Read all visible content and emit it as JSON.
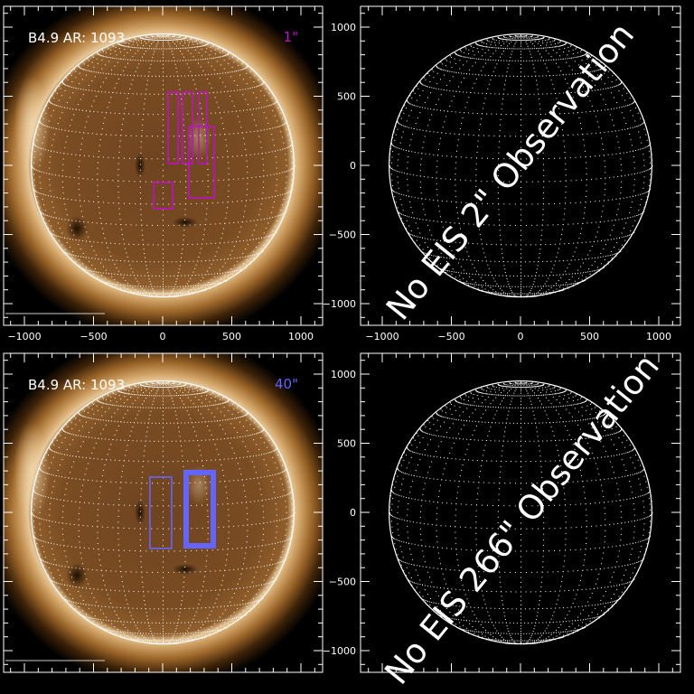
{
  "chart_data": [
    {
      "type": "image-with-overlay",
      "panel": "top-left",
      "label": "B4.9 AR: 1093",
      "raster_label": "1\"",
      "raster_color": "#c010c8",
      "xlim": [
        -1150,
        1150
      ],
      "ylim": [
        -1150,
        1150
      ],
      "xticks": [
        -1000,
        -500,
        0,
        500,
        1000
      ],
      "yticks": [],
      "show_xtick_labels": true,
      "image": "solar-disk",
      "rasters": [
        {
          "x": [
            39,
            111
          ],
          "y": [
            13,
            529
          ],
          "thick": false
        },
        {
          "x": [
            144,
            216
          ],
          "y": [
            13,
            529
          ],
          "thick": false
        },
        {
          "x": [
            261,
            320
          ],
          "y": [
            13,
            529
          ],
          "thick": false
        },
        {
          "x": [
            190,
            373
          ],
          "y": [
            -235,
            281
          ],
          "thick": false
        },
        {
          "x": [
            -65,
            72
          ],
          "y": [
            -314,
            -124
          ],
          "thick": false
        }
      ]
    },
    {
      "type": "grid-only",
      "panel": "top-right",
      "message": "No EIS 2\" Observation",
      "xlim": [
        -1150,
        1150
      ],
      "ylim": [
        -1150,
        1150
      ],
      "xticks": [
        -1000,
        -500,
        0,
        500,
        1000
      ],
      "yticks": [
        1000,
        500,
        0,
        -500,
        -1000
      ],
      "show_xtick_labels": true
    },
    {
      "type": "image-with-overlay",
      "panel": "bottom-left",
      "label": "B4.9 AR: 1093",
      "raster_label": "40\"",
      "raster_color": "#6464ff",
      "xlim": [
        -1150,
        1150
      ],
      "ylim": [
        -1150,
        1150
      ],
      "xticks": [
        -1000,
        -500,
        0,
        500,
        1000
      ],
      "yticks": [],
      "show_xtick_labels": false,
      "image": "solar-disk",
      "rasters": [
        {
          "x": [
            -92,
            65
          ],
          "y": [
            -261,
            255
          ],
          "thick": false
        },
        {
          "x": [
            170,
            366
          ],
          "y": [
            -242,
            288
          ],
          "thick": true
        }
      ]
    },
    {
      "type": "grid-only",
      "panel": "bottom-right",
      "message": "No EIS 266\" Observation",
      "xlim": [
        -1150,
        1150
      ],
      "ylim": [
        -1150,
        1150
      ],
      "xticks": [
        -1000,
        -500,
        0,
        500,
        1000
      ],
      "yticks": [
        1000,
        500,
        0,
        -500,
        -1000
      ],
      "show_xtick_labels": false
    }
  ],
  "solar_radius_arcsec": 950
}
